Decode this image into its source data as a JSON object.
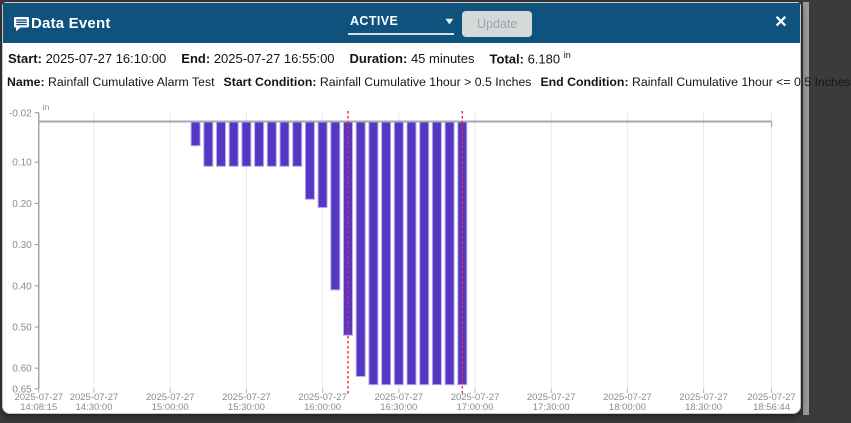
{
  "window": {
    "title": "Data Event",
    "status_value": "ACTIVE",
    "update_label": "Update",
    "close_glyph": "✕",
    "caret_glyph": "▾"
  },
  "summary": {
    "start_label": "Start:",
    "start": "2025-07-27 16:10:00",
    "end_label": "End:",
    "end": "2025-07-27 16:55:00",
    "duration_label": "Duration:",
    "duration": "45 minutes",
    "total_label": "Total:",
    "total": "6.180",
    "total_unit": "in"
  },
  "details": {
    "name_label": "Name:",
    "name": "Rainfall Cumulative Alarm Test",
    "start_condition_label": "Start Condition:",
    "start_condition": "Rainfall Cumulative 1hour > 0.5 Inches",
    "end_condition_label": "End Condition:",
    "end_condition": "Rainfall Cumulative 1hour <= 0.5 Inches"
  },
  "colors": {
    "header_bg": "#0e527d",
    "bar_fill": "#5438c4",
    "bar_border": "#bcaaec",
    "event_marker": "#ff2222",
    "axis_line": "#9fa0a6",
    "baseline": "#a8a8ae",
    "gridline": "#e7e8f0",
    "tick_mark": "#bcbdc5",
    "tick_text": "#8b8b90"
  },
  "chart_data": {
    "type": "bar",
    "title": "",
    "ylabel_unit": "in",
    "date": "2025-07-27",
    "y_axis": {
      "range": [
        -0.02,
        0.65
      ],
      "inverted": true,
      "ticks": [
        -0.02,
        0.1,
        0.2,
        0.3,
        0.4,
        0.5,
        0.6,
        0.65
      ]
    },
    "x_axis": {
      "ticks": [
        {
          "date": "2025-07-27",
          "time": "14:08:15"
        },
        {
          "date": "2025-07-27",
          "time": "14:30:00"
        },
        {
          "date": "2025-07-27",
          "time": "15:00:00"
        },
        {
          "date": "2025-07-27",
          "time": "15:30:00"
        },
        {
          "date": "2025-07-27",
          "time": "16:00:00"
        },
        {
          "date": "2025-07-27",
          "time": "16:30:00"
        },
        {
          "date": "2025-07-27",
          "time": "17:00:00"
        },
        {
          "date": "2025-07-27",
          "time": "17:30:00"
        },
        {
          "date": "2025-07-27",
          "time": "18:00:00"
        },
        {
          "date": "2025-07-27",
          "time": "18:30:00"
        },
        {
          "date": "2025-07-27",
          "time": "18:56:44"
        }
      ]
    },
    "bars": {
      "interval_minutes": 5,
      "times": [
        "15:10",
        "15:15",
        "15:20",
        "15:25",
        "15:30",
        "15:35",
        "15:40",
        "15:45",
        "15:50",
        "15:55",
        "16:00",
        "16:05",
        "16:10",
        "16:15",
        "16:20",
        "16:25",
        "16:30",
        "16:35",
        "16:40",
        "16:45",
        "16:50",
        "16:55"
      ],
      "values": [
        0.06,
        0.11,
        0.11,
        0.11,
        0.11,
        0.11,
        0.11,
        0.11,
        0.11,
        0.19,
        0.21,
        0.41,
        0.52,
        0.62,
        0.64,
        0.64,
        0.64,
        0.64,
        0.64,
        0.64,
        0.64,
        0.64
      ]
    },
    "event_markers": {
      "start_time": "16:10:00",
      "end_time": "16:55:00",
      "style": "dashed"
    },
    "legend": "none",
    "grid": "vertical-only"
  }
}
